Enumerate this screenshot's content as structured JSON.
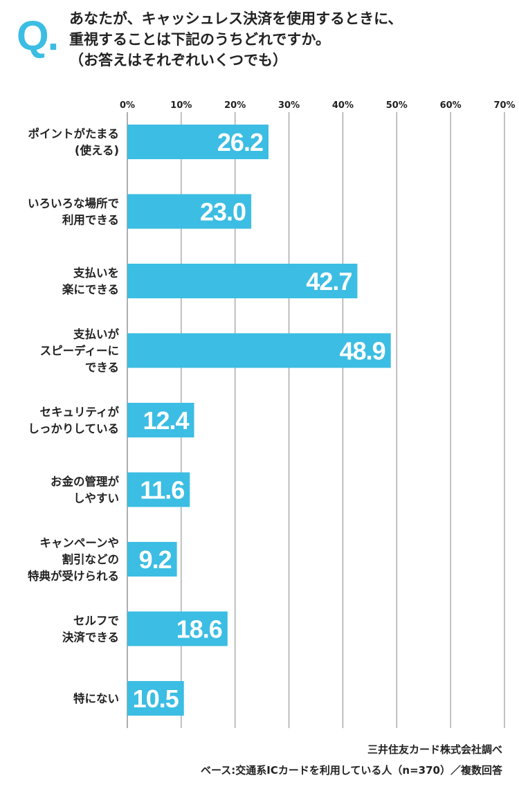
{
  "question": {
    "mark": "Q.",
    "lines": [
      "あなたが、キャッシュレス決済を使用するときに、",
      "重視することは下記のうちどれですか。",
      "（お答えはそれぞれいくつでも）"
    ]
  },
  "chart_data": {
    "type": "bar",
    "orientation": "horizontal",
    "unit": "%",
    "xlim": [
      0,
      70
    ],
    "ticks": [
      0,
      10,
      20,
      30,
      40,
      50,
      60,
      70
    ],
    "tick_labels": [
      "0%",
      "10%",
      "20%",
      "30%",
      "40%",
      "50%",
      "60%",
      "70%"
    ],
    "grid": true,
    "categories": [
      [
        "ポイントがたまる",
        "(使える)"
      ],
      [
        "いろいろな場所で",
        "利用できる"
      ],
      [
        "支払いを",
        "楽にできる"
      ],
      [
        "支払いが",
        "スピーディーに",
        "できる"
      ],
      [
        "セキュリティが",
        "しっかりしている"
      ],
      [
        "お金の管理が",
        "しやすい"
      ],
      [
        "キャンペーンや",
        "割引などの",
        "特典が受けられる"
      ],
      [
        "セルフで",
        "決済できる"
      ],
      [
        "特にない"
      ]
    ],
    "values": [
      26.2,
      23.0,
      42.7,
      48.9,
      12.4,
      11.6,
      9.2,
      18.6,
      10.5
    ],
    "value_labels": [
      "26.2",
      "23.0",
      "42.7",
      "48.9",
      "12.4",
      "11.6",
      "9.2",
      "18.6",
      "10.5"
    ],
    "bar_color": "#3cbde3",
    "grid_color": "#999999",
    "label_color": "#ffffff"
  },
  "footer": {
    "source": "三井住友カード株式会社調べ",
    "base": "ベース:交通系ICカードを利用している人（n=370）／複数回答"
  }
}
